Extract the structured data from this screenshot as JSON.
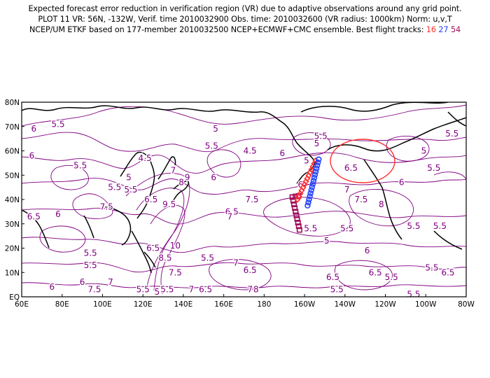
{
  "title": {
    "line1": "Expected forecast error reduction in verification region (VR) due to adaptive observations around any grid point.",
    "line2": "PLOT 11 VR: 56N, -132W, Verif. time 2010032900 Obs. time: 2010032600 (VR radius: 1000km) Norm: u,v,T",
    "line3_prefix": "NCEP/UM ETKF based on 177-member 2010032500 NCEP+ECMWF+CMC ensemble. Best flight tracks:",
    "tracks": [
      {
        "label": "16",
        "color": "#ff3030"
      },
      {
        "label": "27",
        "color": "#2040ff"
      },
      {
        "label": "54",
        "color": "#a0105a"
      }
    ]
  },
  "axes": {
    "x_ticks": [
      "60E",
      "80E",
      "100E",
      "120E",
      "140E",
      "160E",
      "180",
      "160W",
      "140W",
      "120W",
      "100W",
      "80W"
    ],
    "y_ticks": [
      "EQ",
      "10N",
      "20N",
      "30N",
      "40N",
      "50N",
      "60N",
      "70N",
      "80N"
    ]
  },
  "contour_labels": [
    {
      "t": "6",
      "lon": 66,
      "lat": 69
    },
    {
      "t": "5.5",
      "lon": 78,
      "lat": 71
    },
    {
      "t": "6",
      "lon": 65,
      "lat": 58
    },
    {
      "t": "5.5",
      "lon": 89,
      "lat": 54
    },
    {
      "t": "4.5",
      "lon": 121,
      "lat": 57
    },
    {
      "t": "5.5",
      "lon": 106,
      "lat": 45
    },
    {
      "t": "5",
      "lon": 113,
      "lat": 49
    },
    {
      "t": "5.5",
      "lon": 114,
      "lat": 44
    },
    {
      "t": "6.5",
      "lon": 124,
      "lat": 40
    },
    {
      "t": "7.5",
      "lon": 102,
      "lat": 37
    },
    {
      "t": "6.5",
      "lon": 66,
      "lat": 33
    },
    {
      "t": "6",
      "lon": 78,
      "lat": 34
    },
    {
      "t": "7",
      "lon": 135,
      "lat": 52
    },
    {
      "t": "8",
      "lon": 139,
      "lat": 47
    },
    {
      "t": "9",
      "lon": 142,
      "lat": 49
    },
    {
      "t": "9.5",
      "lon": 133,
      "lat": 38
    },
    {
      "t": "6.5",
      "lon": 164,
      "lat": 35
    },
    {
      "t": "7",
      "lon": 163,
      "lat": 33
    },
    {
      "t": "5.5",
      "lon": 154,
      "lat": 62
    },
    {
      "t": "5",
      "lon": 156,
      "lat": 69
    },
    {
      "t": "6",
      "lon": 155,
      "lat": 49
    },
    {
      "t": "7.5",
      "lon": 174,
      "lat": 40
    },
    {
      "t": "4.5",
      "lon": 173,
      "lat": 60
    },
    {
      "t": "6",
      "lon": 189,
      "lat": 59
    },
    {
      "t": "6",
      "lon": 198,
      "lat": 46
    },
    {
      "t": "5",
      "lon": 201,
      "lat": 56
    },
    {
      "t": "5",
      "lon": 206,
      "lat": 63
    },
    {
      "t": "6.5",
      "lon": 223,
      "lat": 53
    },
    {
      "t": "5.5",
      "lon": 208,
      "lat": 66
    },
    {
      "t": "7",
      "lon": 221,
      "lat": 44
    },
    {
      "t": "7.5",
      "lon": 228,
      "lat": 40
    },
    {
      "t": "8",
      "lon": 238,
      "lat": 38
    },
    {
      "t": "6",
      "lon": 248,
      "lat": 47
    },
    {
      "t": "5.5",
      "lon": 264,
      "lat": 53
    },
    {
      "t": "5",
      "lon": 259,
      "lat": 60
    },
    {
      "t": "5.5",
      "lon": 273,
      "lat": 67
    },
    {
      "t": "5.5",
      "lon": 267,
      "lat": 29
    },
    {
      "t": "5.5",
      "lon": 254,
      "lat": 29
    },
    {
      "t": "5.5",
      "lon": 221,
      "lat": 28
    },
    {
      "t": "5",
      "lon": 211,
      "lat": 23
    },
    {
      "t": "5.5",
      "lon": 203,
      "lat": 28
    },
    {
      "t": "6",
      "lon": 231,
      "lat": 19
    },
    {
      "t": "6.5",
      "lon": 235,
      "lat": 10
    },
    {
      "t": "5.5",
      "lon": 243,
      "lat": 8
    },
    {
      "t": "5.5",
      "lon": 263,
      "lat": 12
    },
    {
      "t": "6.5",
      "lon": 271,
      "lat": 10
    },
    {
      "t": "5.5",
      "lon": 254,
      "lat": 1
    },
    {
      "t": "5.5",
      "lon": 216,
      "lat": 3
    },
    {
      "t": "6.5",
      "lon": 214,
      "lat": 8
    },
    {
      "t": "5.5",
      "lon": 152,
      "lat": 16
    },
    {
      "t": "6.5",
      "lon": 173,
      "lat": 11
    },
    {
      "t": "7",
      "lon": 166,
      "lat": 14
    },
    {
      "t": "7",
      "lon": 173,
      "lat": 3
    },
    {
      "t": "8",
      "lon": 176,
      "lat": 3
    },
    {
      "t": "6.5",
      "lon": 151,
      "lat": 3
    },
    {
      "t": "7",
      "lon": 144,
      "lat": 3
    },
    {
      "t": "7.5",
      "lon": 136,
      "lat": 10
    },
    {
      "t": "8.5",
      "lon": 131,
      "lat": 16
    },
    {
      "t": "10",
      "lon": 136,
      "lat": 21
    },
    {
      "t": "6.5",
      "lon": 125,
      "lat": 20
    },
    {
      "t": "5.5",
      "lon": 132,
      "lat": 3
    },
    {
      "t": "5",
      "lon": 127,
      "lat": 2
    },
    {
      "t": "7",
      "lon": 104,
      "lat": 6
    },
    {
      "t": "5.5",
      "lon": 120,
      "lat": 3
    },
    {
      "t": "5.5",
      "lon": 94,
      "lat": 13
    },
    {
      "t": "6",
      "lon": 90,
      "lat": 6
    },
    {
      "t": "6",
      "lon": 75,
      "lat": 4
    },
    {
      "t": "7.5",
      "lon": 96,
      "lat": 3
    },
    {
      "t": "5.5",
      "lon": 94,
      "lat": 18
    }
  ],
  "verification_region": {
    "center_lon": 228,
    "center_lat": 56,
    "radius_km": 1000
  }
}
